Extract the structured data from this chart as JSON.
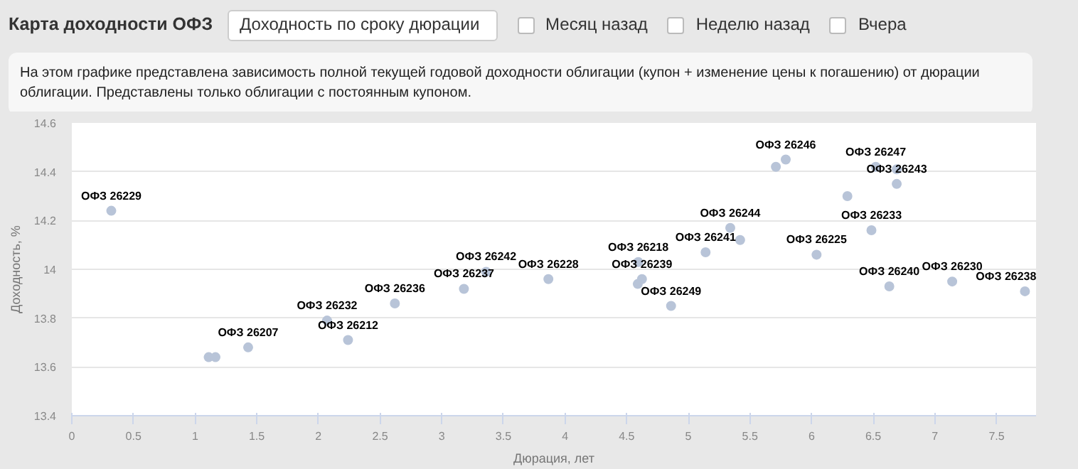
{
  "chart_data": {
    "type": "scatter",
    "title": "Карта доходности ОФЗ",
    "subtitle": "На этом графике представлена зависимость полной текущей годовой доходности облигации (купон + изменение цены к погашению) от дюрации облигации. Представлены только облигации с постоянным купоном.",
    "annotations": [
      "Доходность по сроку дюрации",
      "Месяц назад",
      "Неделю назад",
      "Вчера"
    ],
    "xlabel": "Дюрация, лет",
    "ylabel": "Доходность, %",
    "x": [
      0.32,
      1.11,
      1.165,
      1.43,
      2.07,
      2.24,
      2.62,
      3.18,
      3.36,
      3.865,
      4.594,
      4.624,
      4.59,
      4.86,
      5.14,
      5.34,
      5.42,
      5.71,
      5.79,
      6.04,
      6.29,
      6.485,
      6.52,
      6.69,
      6.69,
      6.63,
      7.14,
      7.73
    ],
    "values": [
      14.24,
      13.64,
      13.64,
      13.68,
      13.79,
      13.71,
      13.86,
      13.92,
      13.99,
      13.96,
      14.03,
      13.96,
      13.94,
      13.85,
      14.07,
      14.17,
      14.12,
      14.42,
      14.45,
      14.06,
      14.3,
      14.16,
      14.42,
      14.41,
      14.35,
      13.93,
      13.95,
      13.91
    ],
    "value_labels": [
      "ОФЗ 26229",
      null,
      null,
      "ОФЗ 26207",
      "ОФЗ 26232",
      "ОФЗ 26212",
      "ОФЗ 26236",
      "ОФЗ 26237",
      "ОФЗ 26242",
      "ОФЗ 26228",
      "ОФЗ 26218",
      "ОФЗ 26239",
      null,
      "ОФЗ 26249",
      "ОФЗ 26241",
      "ОФЗ 26244",
      null,
      null,
      "ОФЗ 26246",
      "ОФЗ 26225",
      null,
      "ОФЗ 26233",
      "ОФЗ 26247",
      null,
      "ОФЗ 26243",
      "ОФЗ 26240",
      "ОФЗ 26230",
      "ОФЗ 26238"
    ],
    "color": "#b8c4d8",
    "marker": "circle",
    "xlim": [
      0,
      7.82
    ],
    "ylim": [
      13.4,
      14.6
    ],
    "xticks": [
      0,
      0.5,
      1,
      1.5,
      2,
      2.5,
      3,
      3.5,
      4,
      4.5,
      5,
      5.5,
      6,
      6.5,
      7,
      7.5
    ],
    "yticks": [
      13.4,
      13.6,
      13.8,
      14,
      14.2,
      14.4,
      14.6
    ],
    "grid": "y",
    "legend": false
  }
}
